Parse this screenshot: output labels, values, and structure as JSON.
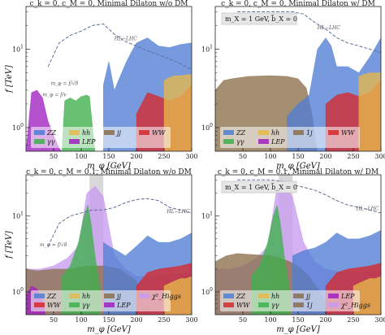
{
  "chart_data": [
    {
      "type": "area",
      "title": "c_k = 0, c_M = 0, Minimal Dilaton w/o DM",
      "xlabel": "m_φ [GeV]",
      "ylabel": "f [TeV]",
      "xlim": [
        0,
        300
      ],
      "ylim": [
        0.5,
        35
      ],
      "yscale": "log",
      "xticks": [
        "50",
        "100",
        "150",
        "200",
        "250",
        "300"
      ],
      "yticks": [
        "10^0",
        "10^1"
      ],
      "grid": false,
      "legend_position": "bottom",
      "legend_columns": 4,
      "inset": "",
      "higgs_band": false,
      "legend": [
        {
          "label": "ZZ",
          "color": "#4f7ed3"
        },
        {
          "label": "hh",
          "color": "#e7b84a"
        },
        {
          "label": "jj",
          "color": "#8a6f4b"
        },
        {
          "label": "WW",
          "color": "#d6282b"
        },
        {
          "label": "γγ",
          "color": "#3db04b"
        },
        {
          "label": "LEP",
          "color": "#a020c0"
        }
      ],
      "annotations": [
        {
          "text": "HL−LHC",
          "x": 160,
          "y": 13
        },
        {
          "text": "m_φ = f/v",
          "x": 30,
          "y": 2.5
        },
        {
          "text": "m_φ = f/√8",
          "x": 45,
          "y": 3.5
        }
      ],
      "series": [
        {
          "name": "ZZ",
          "color": "#4f7ed3",
          "x": [
            140,
            150,
            160,
            180,
            190,
            200,
            220,
            240,
            260,
            280,
            300
          ],
          "y": [
            3.5,
            7.0,
            3.0,
            6.5,
            9.0,
            12.0,
            14.0,
            11.0,
            10.5,
            11.5,
            12.0
          ]
        },
        {
          "name": "WW",
          "color": "#d6282b",
          "x": [
            200,
            220,
            240,
            260,
            280,
            300
          ],
          "y": [
            1.5,
            2.8,
            2.5,
            2.2,
            2.5,
            3.5
          ]
        },
        {
          "name": "hh",
          "color": "#e7b84a",
          "x": [
            250,
            260,
            270,
            280,
            290,
            300
          ],
          "y": [
            4.0,
            4.4,
            4.6,
            4.6,
            4.7,
            4.8
          ]
        },
        {
          "name": "γγ",
          "color": "#3db04b",
          "x": [
            65,
            70,
            80,
            90,
            100,
            110,
            115,
            125
          ],
          "y": [
            0.5,
            2.2,
            2.4,
            2.2,
            2.5,
            2.6,
            2.5,
            0.5
          ]
        },
        {
          "name": "jj",
          "color": "#8a6f4b",
          "x": [],
          "y": []
        },
        {
          "name": "LEP",
          "color": "#a020c0",
          "x": [
            0,
            10,
            20,
            30,
            40,
            50,
            60,
            65
          ],
          "y": [
            0.5,
            2.8,
            3.0,
            2.4,
            1.2,
            0.8,
            0.55,
            0.5
          ]
        }
      ],
      "hl_lhc": {
        "x": [
          40,
          60,
          80,
          100,
          120,
          140,
          160,
          180,
          200,
          220,
          240,
          260,
          280,
          300
        ],
        "y": [
          6.0,
          12.0,
          15.0,
          17.0,
          20.0,
          21.0,
          15.5,
          12.5,
          11.0,
          9.5,
          8.5,
          7.5,
          6.5,
          5.5
        ]
      }
    },
    {
      "type": "area",
      "title": "c_k = 0, c_M = 0, Minimal Dilaton w/ DM",
      "xlabel": "m_φ [GeV]",
      "ylabel": "",
      "xlim": [
        0,
        300
      ],
      "ylim": [
        0.5,
        35
      ],
      "yscale": "log",
      "xticks": [
        "50",
        "100",
        "150",
        "200",
        "250",
        "300"
      ],
      "yticks": [
        "10^0",
        "10^1"
      ],
      "grid": false,
      "legend_position": "bottom",
      "legend_columns": 4,
      "inset": "m_X = 1 GeV, b̃_X = 0",
      "higgs_band": false,
      "legend": [
        {
          "label": "ZZ",
          "color": "#4f7ed3"
        },
        {
          "label": "hh",
          "color": "#e7b84a"
        },
        {
          "label": "1j",
          "color": "#8a6f4b"
        },
        {
          "label": "WW",
          "color": "#d6282b"
        },
        {
          "label": "γγ",
          "color": "#3db04b"
        },
        {
          "label": "LEP",
          "color": "#a020c0"
        }
      ],
      "annotations": [
        {
          "text": "HL−LHC",
          "x": 185,
          "y": 18
        }
      ],
      "series": [
        {
          "name": "1j",
          "color": "#8a6f4b",
          "x": [
            0,
            15,
            30,
            60,
            100,
            130,
            150,
            165,
            175,
            185
          ],
          "y": [
            3.0,
            4.0,
            4.2,
            4.5,
            4.6,
            4.5,
            4.2,
            3.2,
            1.5,
            0.5
          ]
        },
        {
          "name": "ZZ",
          "color": "#4f7ed3",
          "x": [
            130,
            150,
            170,
            185,
            200,
            210,
            220,
            240,
            260,
            280,
            300
          ],
          "y": [
            1.4,
            2.0,
            2.6,
            10.0,
            14.0,
            11.0,
            6.0,
            6.0,
            5.0,
            8.0,
            14.0
          ]
        },
        {
          "name": "WW",
          "color": "#d6282b",
          "x": [
            200,
            220,
            240,
            260,
            280,
            300
          ],
          "y": [
            2.0,
            2.6,
            2.8,
            2.5,
            2.8,
            4.0
          ]
        },
        {
          "name": "hh",
          "color": "#e7b84a",
          "x": [
            260,
            270,
            280,
            290,
            300
          ],
          "y": [
            4.5,
            4.8,
            5.0,
            5.0,
            5.0
          ]
        },
        {
          "name": "γγ",
          "color": "#3db04b",
          "x": [],
          "y": []
        },
        {
          "name": "LEP",
          "color": "#a020c0",
          "x": [],
          "y": []
        }
      ],
      "hl_lhc": {
        "x": [
          40,
          60,
          80,
          100,
          120,
          140,
          160,
          180,
          200,
          220,
          240,
          260,
          280,
          300
        ],
        "y": [
          30,
          30,
          30,
          30,
          30,
          30,
          28,
          22,
          18,
          14,
          12,
          11,
          10,
          9
        ]
      }
    },
    {
      "type": "area",
      "title": "c_k = 0, c_M = 0.1, Minimal Dilaton w/o DM",
      "xlabel": "m_φ [GeV]",
      "ylabel": "f [TeV]",
      "xlim": [
        0,
        300
      ],
      "ylim": [
        0.5,
        35
      ],
      "yscale": "log",
      "xticks": [
        "50",
        "100",
        "150",
        "200",
        "250",
        "300"
      ],
      "yticks": [
        "10^0",
        "10^1"
      ],
      "grid": false,
      "legend_position": "bottom",
      "legend_columns": 4,
      "inset": "",
      "higgs_band": true,
      "legend": [
        {
          "label": "ZZ",
          "color": "#4f7ed3"
        },
        {
          "label": "hh",
          "color": "#e7b84a"
        },
        {
          "label": "jj",
          "color": "#8a6f4b"
        },
        {
          "label": "χ²_Higgs",
          "color": "#c79bf0"
        },
        {
          "label": "WW",
          "color": "#d6282b"
        },
        {
          "label": "γγ",
          "color": "#3db04b"
        },
        {
          "label": "LEP",
          "color": "#a020c0"
        }
      ],
      "annotations": [
        {
          "text": "HL−LHC",
          "x": 255,
          "y": 11
        },
        {
          "text": "m_φ = f/√8",
          "x": 25,
          "y": 4
        }
      ],
      "series": [
        {
          "name": "χ²_Higgs",
          "color": "#c79bf0",
          "x": [
            0,
            25,
            50,
            75,
            95,
            110,
            125,
            140,
            160,
            180,
            200,
            230,
            260,
            300
          ],
          "y": [
            2.0,
            2.0,
            2.2,
            2.8,
            4.0,
            20.0,
            25.0,
            18.0,
            3.0,
            2.0,
            1.6,
            1.6,
            1.7,
            1.8
          ]
        },
        {
          "name": "jj",
          "color": "#8a6f4b",
          "x": [
            0,
            20,
            50,
            80,
            110,
            140,
            170,
            200,
            220
          ],
          "y": [
            2.0,
            1.9,
            2.0,
            2.0,
            2.2,
            2.2,
            2.0,
            1.4,
            0.5
          ]
        },
        {
          "name": "ZZ",
          "color": "#4f7ed3",
          "x": [
            140,
            150,
            165,
            180,
            200,
            220,
            240,
            260,
            280,
            300
          ],
          "y": [
            4.5,
            4.0,
            3.5,
            3.0,
            4.0,
            5.5,
            4.5,
            4.5,
            5.0,
            6.0
          ]
        },
        {
          "name": "γγ",
          "color": "#3db04b",
          "x": [
            65,
            80,
            95,
            105,
            112,
            118,
            125,
            135
          ],
          "y": [
            1.6,
            2.2,
            4.5,
            10.0,
            14.0,
            8.0,
            3.0,
            1.0
          ]
        },
        {
          "name": "WW",
          "color": "#d6282b",
          "x": [
            200,
            220,
            240,
            260,
            280,
            300
          ],
          "y": [
            1.2,
            1.8,
            2.0,
            2.1,
            2.2,
            2.4
          ]
        },
        {
          "name": "hh",
          "color": "#e7b84a",
          "x": [
            250,
            260,
            270,
            280,
            290,
            300
          ],
          "y": [
            1.2,
            1.3,
            1.4,
            1.5,
            1.5,
            1.6
          ]
        },
        {
          "name": "LEP",
          "color": "#a020c0",
          "x": [
            0,
            10,
            20,
            30,
            35
          ],
          "y": [
            0.9,
            1.2,
            1.1,
            0.8,
            0.5
          ]
        }
      ],
      "hl_lhc": {
        "x": [
          40,
          60,
          80,
          100,
          120,
          140,
          160,
          180,
          200,
          220,
          240,
          260,
          280,
          300
        ],
        "y": [
          4.0,
          8.0,
          10.0,
          11.0,
          12.0,
          12.0,
          13.0,
          15.0,
          16.5,
          17.0,
          16.0,
          13.0,
          12.0,
          11.0
        ]
      }
    },
    {
      "type": "area",
      "title": "c_k = 0, c_M = 0.1, Minimal Dilaton w/ DM",
      "xlabel": "m_φ [GeV]",
      "ylabel": "",
      "xlim": [
        0,
        300
      ],
      "ylim": [
        0.5,
        35
      ],
      "yscale": "log",
      "xticks": [
        "50",
        "100",
        "150",
        "200",
        "250",
        "300"
      ],
      "yticks": [
        "10^0",
        "10^1"
      ],
      "grid": false,
      "legend_position": "bottom",
      "legend_columns": 4,
      "inset": "m_X = 1 GeV, b̃_X = 0",
      "higgs_band": true,
      "legend": [
        {
          "label": "ZZ",
          "color": "#4f7ed3"
        },
        {
          "label": "hh",
          "color": "#e7b84a"
        },
        {
          "label": "jj",
          "color": "#8a6f4b"
        },
        {
          "label": "LEP",
          "color": "#a020c0"
        },
        {
          "label": "WW",
          "color": "#d6282b"
        },
        {
          "label": "γγ",
          "color": "#3db04b"
        },
        {
          "label": "1j",
          "color": "#8a6f4b"
        },
        {
          "label": "χ²_Higgs",
          "color": "#c79bf0"
        }
      ],
      "annotations": [
        {
          "text": "HL−LHC",
          "x": 255,
          "y": 12
        }
      ],
      "series": [
        {
          "name": "χ²_Higgs",
          "color": "#c79bf0",
          "x": [
            0,
            25,
            50,
            75,
            95,
            110,
            125,
            140,
            160,
            180,
            200,
            230,
            260,
            300
          ],
          "y": [
            2.0,
            2.0,
            2.2,
            2.8,
            4.0,
            20.0,
            25.0,
            18.0,
            4.5,
            2.5,
            2.0,
            1.8,
            1.8,
            1.9
          ]
        },
        {
          "name": "1j",
          "color": "#8a6f4b",
          "x": [
            0,
            20,
            40,
            70,
            100,
            130,
            150,
            170,
            190,
            210
          ],
          "y": [
            2.5,
            3.0,
            3.2,
            3.1,
            3.0,
            2.6,
            2.2,
            1.6,
            1.0,
            0.5
          ]
        },
        {
          "name": "ZZ",
          "color": "#4f7ed3",
          "x": [
            140,
            160,
            180,
            200,
            220,
            240,
            260,
            280,
            300
          ],
          "y": [
            3.0,
            3.5,
            3.8,
            4.5,
            6.0,
            5.0,
            5.0,
            5.5,
            6.5
          ]
        },
        {
          "name": "γγ",
          "color": "#3db04b",
          "x": [
            65,
            80,
            95,
            105,
            112,
            118,
            125,
            135
          ],
          "y": [
            1.6,
            2.2,
            4.5,
            10.0,
            14.0,
            8.0,
            3.0,
            1.0
          ]
        },
        {
          "name": "WW",
          "color": "#d6282b",
          "x": [
            200,
            220,
            240,
            260,
            280,
            300
          ],
          "y": [
            1.2,
            1.8,
            2.0,
            2.1,
            2.2,
            2.4
          ]
        },
        {
          "name": "hh",
          "color": "#e7b84a",
          "x": [
            250,
            260,
            270,
            280,
            290,
            300
          ],
          "y": [
            1.2,
            1.3,
            1.4,
            1.5,
            1.5,
            1.6
          ]
        },
        {
          "name": "jj",
          "color": "#8a6f4b",
          "x": [],
          "y": []
        },
        {
          "name": "LEP",
          "color": "#a020c0",
          "x": [],
          "y": []
        }
      ],
      "hl_lhc": {
        "x": [
          40,
          60,
          80,
          100,
          120,
          140,
          160,
          180,
          200,
          220,
          240,
          260,
          280,
          300
        ],
        "y": [
          30,
          30,
          30,
          30,
          29,
          26,
          24,
          22,
          19,
          16,
          14,
          13,
          12,
          11
        ]
      }
    }
  ]
}
